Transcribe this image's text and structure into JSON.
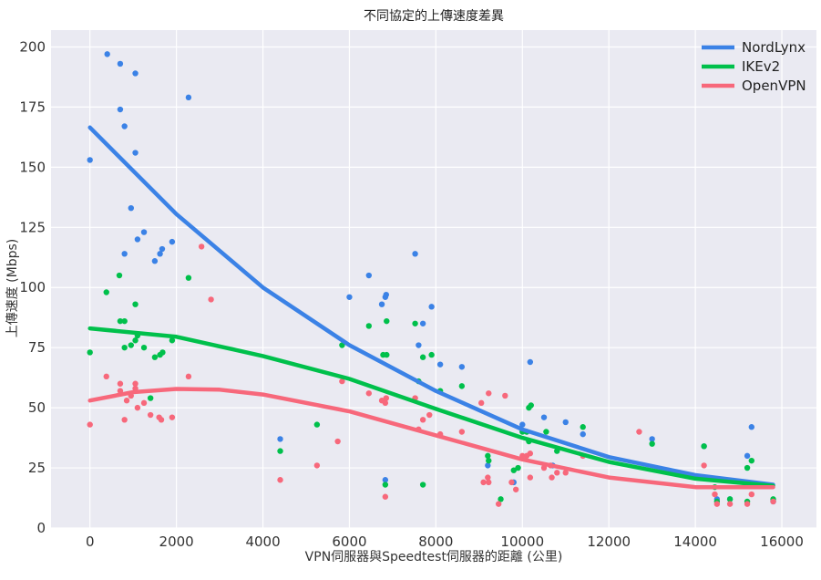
{
  "chart_data": {
    "type": "scatter",
    "title": "不同協定的上傳速度差異",
    "xlabel": "VPN伺服器與Speedtest伺服器的距離 (公里)",
    "ylabel": "上傳速度 (Mbps)",
    "xlim": [
      -900,
      16800
    ],
    "ylim": [
      0,
      207
    ],
    "xticks": [
      0,
      2000,
      4000,
      6000,
      8000,
      10000,
      12000,
      14000,
      16000
    ],
    "yticks": [
      0,
      25,
      50,
      75,
      100,
      125,
      150,
      175,
      200
    ],
    "grid": true,
    "legend_position": "top-right",
    "series": [
      {
        "name": "NordLynx",
        "color": "#3b82e6",
        "trend": [
          [
            0,
            166.5
          ],
          [
            2000,
            130.5
          ],
          [
            4000,
            100
          ],
          [
            6000,
            76
          ],
          [
            8000,
            57
          ],
          [
            10000,
            41
          ],
          [
            12000,
            29.5
          ],
          [
            14000,
            22
          ],
          [
            15800,
            18
          ]
        ],
        "points": [
          [
            0,
            153
          ],
          [
            400,
            197
          ],
          [
            700,
            193
          ],
          [
            700,
            174
          ],
          [
            800,
            167
          ],
          [
            800,
            114
          ],
          [
            950,
            133
          ],
          [
            1050,
            189
          ],
          [
            1050,
            156
          ],
          [
            1100,
            120
          ],
          [
            1250,
            123
          ],
          [
            1500,
            111
          ],
          [
            1620,
            114
          ],
          [
            1670,
            116
          ],
          [
            1900,
            119
          ],
          [
            2280,
            179
          ],
          [
            4400,
            37
          ],
          [
            6000,
            96
          ],
          [
            6450,
            105
          ],
          [
            6750,
            93
          ],
          [
            6850,
            97
          ],
          [
            6830,
            96
          ],
          [
            6830,
            20
          ],
          [
            7520,
            114
          ],
          [
            7600,
            76
          ],
          [
            7700,
            85
          ],
          [
            7900,
            92
          ],
          [
            8100,
            68
          ],
          [
            8600,
            67
          ],
          [
            9200,
            26
          ],
          [
            9800,
            19
          ],
          [
            10000,
            43
          ],
          [
            10100,
            40
          ],
          [
            10180,
            69
          ],
          [
            10500,
            46
          ],
          [
            10700,
            26
          ],
          [
            11000,
            44
          ],
          [
            11400,
            39
          ],
          [
            13000,
            37
          ],
          [
            14200,
            34
          ],
          [
            14500,
            12
          ],
          [
            14800,
            12
          ],
          [
            15200,
            30
          ],
          [
            15300,
            42
          ],
          [
            15800,
            11
          ]
        ]
      },
      {
        "name": "IKEv2",
        "color": "#00c04b",
        "trend": [
          [
            0,
            83
          ],
          [
            2000,
            79.5
          ],
          [
            4000,
            71.5
          ],
          [
            6000,
            62
          ],
          [
            8000,
            49.5
          ],
          [
            10000,
            37.5
          ],
          [
            12000,
            27.5
          ],
          [
            14000,
            20.5
          ],
          [
            15800,
            17.5
          ]
        ],
        "points": [
          [
            0,
            73
          ],
          [
            380,
            98
          ],
          [
            680,
            105
          ],
          [
            700,
            86
          ],
          [
            800,
            86
          ],
          [
            800,
            75
          ],
          [
            950,
            76
          ],
          [
            1050,
            93
          ],
          [
            1050,
            78
          ],
          [
            1100,
            80
          ],
          [
            1250,
            75
          ],
          [
            1400,
            54
          ],
          [
            1500,
            71
          ],
          [
            1620,
            72
          ],
          [
            1680,
            73
          ],
          [
            1900,
            78
          ],
          [
            2280,
            104
          ],
          [
            4400,
            32
          ],
          [
            5250,
            43
          ],
          [
            5830,
            76
          ],
          [
            6450,
            84
          ],
          [
            6780,
            72
          ],
          [
            6860,
            86
          ],
          [
            6860,
            72
          ],
          [
            6830,
            18
          ],
          [
            7520,
            85
          ],
          [
            7600,
            61
          ],
          [
            7700,
            71
          ],
          [
            7700,
            18
          ],
          [
            7900,
            72
          ],
          [
            8100,
            57
          ],
          [
            8600,
            59
          ],
          [
            9200,
            30
          ],
          [
            9220,
            28
          ],
          [
            9500,
            12
          ],
          [
            9800,
            24
          ],
          [
            9900,
            25
          ],
          [
            10000,
            40
          ],
          [
            10100,
            40
          ],
          [
            10150,
            50
          ],
          [
            10200,
            51
          ],
          [
            10150,
            36
          ],
          [
            10550,
            40
          ],
          [
            10800,
            32
          ],
          [
            11400,
            42
          ],
          [
            13000,
            35
          ],
          [
            14200,
            34
          ],
          [
            14450,
            17
          ],
          [
            14500,
            11
          ],
          [
            14800,
            12
          ],
          [
            15200,
            11
          ],
          [
            15200,
            25
          ],
          [
            15300,
            28
          ],
          [
            15800,
            12
          ]
        ]
      },
      {
        "name": "OpenVPN",
        "color": "#f7687b",
        "trend": [
          [
            0,
            53
          ],
          [
            1000,
            56.5
          ],
          [
            2000,
            57.8
          ],
          [
            3000,
            57.5
          ],
          [
            4000,
            55.5
          ],
          [
            6000,
            48.5
          ],
          [
            8000,
            38.5
          ],
          [
            10000,
            28.5
          ],
          [
            12000,
            21
          ],
          [
            14000,
            17
          ],
          [
            15800,
            17
          ]
        ],
        "points": [
          [
            0,
            43
          ],
          [
            380,
            63
          ],
          [
            700,
            60
          ],
          [
            700,
            57
          ],
          [
            850,
            53
          ],
          [
            800,
            45
          ],
          [
            950,
            55
          ],
          [
            1050,
            60
          ],
          [
            1050,
            58
          ],
          [
            1100,
            50
          ],
          [
            1250,
            52
          ],
          [
            1400,
            47
          ],
          [
            1600,
            46
          ],
          [
            1650,
            45
          ],
          [
            1900,
            46
          ],
          [
            2280,
            63
          ],
          [
            2580,
            117
          ],
          [
            2800,
            95
          ],
          [
            4400,
            20
          ],
          [
            5250,
            26
          ],
          [
            5730,
            36
          ],
          [
            5830,
            61
          ],
          [
            6450,
            56
          ],
          [
            6750,
            53
          ],
          [
            6830,
            52
          ],
          [
            6850,
            54
          ],
          [
            6830,
            13
          ],
          [
            7520,
            54
          ],
          [
            7600,
            41
          ],
          [
            7700,
            45
          ],
          [
            7850,
            47
          ],
          [
            8100,
            39
          ],
          [
            8600,
            40
          ],
          [
            9050,
            52
          ],
          [
            9100,
            19
          ],
          [
            9200,
            21
          ],
          [
            9220,
            19
          ],
          [
            9220,
            56
          ],
          [
            9450,
            10
          ],
          [
            9600,
            55
          ],
          [
            9750,
            19
          ],
          [
            9850,
            16
          ],
          [
            10000,
            30
          ],
          [
            10100,
            30
          ],
          [
            10180,
            31
          ],
          [
            10180,
            21
          ],
          [
            10500,
            25
          ],
          [
            10650,
            26
          ],
          [
            10680,
            21
          ],
          [
            10800,
            23
          ],
          [
            11000,
            23
          ],
          [
            11400,
            30
          ],
          [
            12700,
            40
          ],
          [
            14200,
            26
          ],
          [
            14450,
            14
          ],
          [
            14500,
            10
          ],
          [
            14800,
            10
          ],
          [
            15200,
            10
          ],
          [
            15300,
            14
          ],
          [
            15800,
            11
          ]
        ]
      }
    ]
  }
}
